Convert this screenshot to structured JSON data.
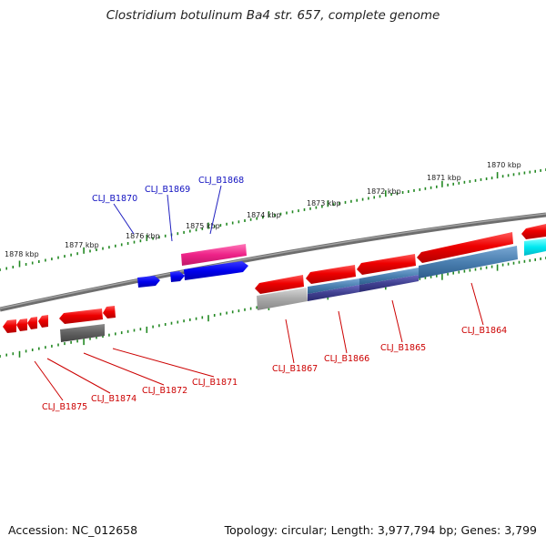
{
  "title": "Clostridium botulinum Ba4 str. 657, complete genome",
  "footer": {
    "accession": "Accession: NC_012658",
    "topology": "Topology: circular; Length: 3,977,794 bp; Genes: 3,799"
  },
  "kbp_ticks": [
    "1878 kbp",
    "1877 kbp",
    "1876 kbp",
    "1875 kbp",
    "1874 kbp",
    "1873 kbp",
    "1872 kbp",
    "1871 kbp",
    "1870 kbp"
  ],
  "gene_labels_top": [
    "CLJ_B1870",
    "CLJ_B1869",
    "CLJ_B1868"
  ],
  "gene_labels_bottom": [
    "CLJ_B1875",
    "CLJ_B1874",
    "CLJ_B1872",
    "CLJ_B1871",
    "CLJ_B1867",
    "CLJ_B1866",
    "CLJ_B1865",
    "CLJ_B1864"
  ],
  "colors": {
    "backbone": "#7a7a7a",
    "tick": "#228822",
    "cds_forward": "#ee0000",
    "gene_blue": "#0000ee",
    "gene_magenta": "#ee2288",
    "gene_cyan": "#00e8f0",
    "feature_gray": "#a8a8a8",
    "feature_steel": "#4a7fb0",
    "feature_navy": "#404090",
    "label_blue": "#1010c0",
    "label_red": "#cc0000"
  }
}
